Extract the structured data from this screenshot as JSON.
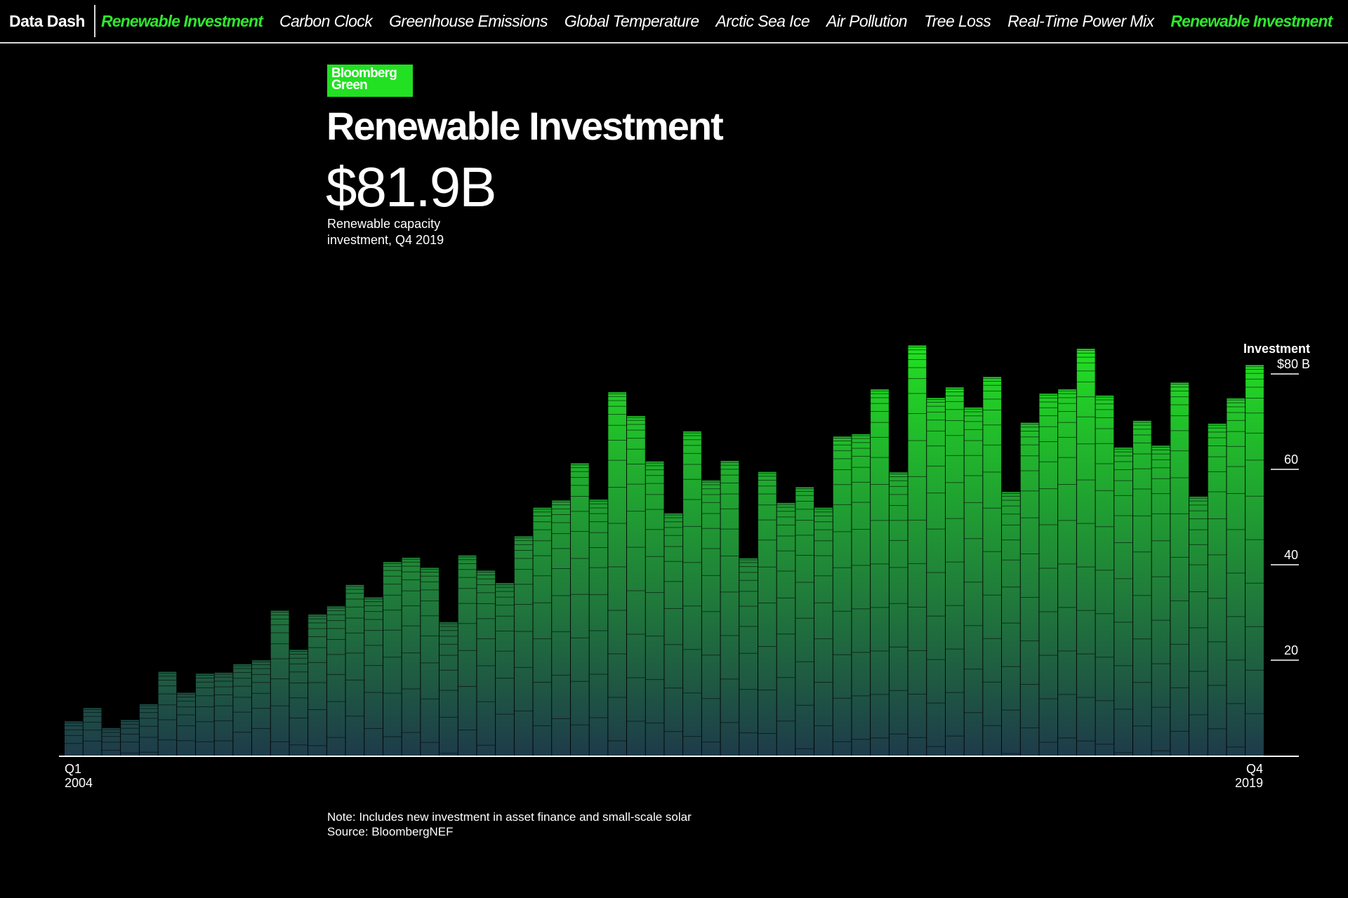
{
  "nav": {
    "brand": "Data Dash",
    "items": [
      {
        "label": "Renewable Investment",
        "active": true
      },
      {
        "label": "Carbon Clock",
        "active": false
      },
      {
        "label": "Greenhouse Emissions",
        "active": false
      },
      {
        "label": "Global Temperature",
        "active": false
      },
      {
        "label": "Arctic Sea Ice",
        "active": false
      },
      {
        "label": "Air Pollution",
        "active": false
      },
      {
        "label": "Tree Loss",
        "active": false
      },
      {
        "label": "Real-Time Power Mix",
        "active": false
      },
      {
        "label": "Renewable Investment",
        "active": true
      }
    ]
  },
  "logo": {
    "line1": "Bloomberg",
    "line2": "Green"
  },
  "header": {
    "title": "Renewable Investment",
    "value": "$81.9B",
    "caption": "Renewable capacity investment, Q4 2019"
  },
  "colors": {
    "accent": "#22e022",
    "bar_top": "#22e022",
    "bar_bottom": "#1e3b4a"
  },
  "chart_data": {
    "type": "bar",
    "ylabel": "Investment",
    "yunit": "B",
    "ylim": [
      0,
      86
    ],
    "yticks": [
      20,
      40,
      60,
      80
    ],
    "ytick_labels": [
      "20",
      "40",
      "60",
      "$80"
    ],
    "grid": false,
    "x_start_label": [
      "Q1",
      "2004"
    ],
    "x_end_label": [
      "Q4",
      "2019"
    ],
    "categories": [
      "Q1 2004",
      "Q2 2004",
      "Q3 2004",
      "Q4 2004",
      "Q1 2005",
      "Q2 2005",
      "Q3 2005",
      "Q4 2005",
      "Q1 2006",
      "Q2 2006",
      "Q3 2006",
      "Q4 2006",
      "Q1 2007",
      "Q2 2007",
      "Q3 2007",
      "Q4 2007",
      "Q1 2008",
      "Q2 2008",
      "Q3 2008",
      "Q4 2008",
      "Q1 2009",
      "Q2 2009",
      "Q3 2009",
      "Q4 2009",
      "Q1 2010",
      "Q2 2010",
      "Q3 2010",
      "Q4 2010",
      "Q1 2011",
      "Q2 2011",
      "Q3 2011",
      "Q4 2011",
      "Q1 2012",
      "Q2 2012",
      "Q3 2012",
      "Q4 2012",
      "Q1 2013",
      "Q2 2013",
      "Q3 2013",
      "Q4 2013",
      "Q1 2014",
      "Q2 2014",
      "Q3 2014",
      "Q4 2014",
      "Q1 2015",
      "Q2 2015",
      "Q3 2015",
      "Q4 2015",
      "Q1 2016",
      "Q2 2016",
      "Q3 2016",
      "Q4 2016",
      "Q1 2017",
      "Q2 2017",
      "Q3 2017",
      "Q4 2017",
      "Q1 2018",
      "Q2 2018",
      "Q3 2018",
      "Q4 2018",
      "Q1 2019",
      "Q2 2019",
      "Q3 2019",
      "Q4 2019"
    ],
    "values": [
      7.2,
      10.0,
      5.8,
      7.5,
      10.8,
      17.6,
      13.2,
      17.2,
      17.4,
      19.2,
      20.0,
      30.4,
      22.2,
      29.6,
      31.3,
      35.8,
      33.2,
      40.6,
      41.5,
      39.4,
      28.0,
      42.0,
      38.8,
      36.2,
      46.0,
      52.0,
      53.5,
      61.3,
      53.7,
      76.2,
      71.2,
      61.7,
      50.8,
      68.0,
      57.7,
      61.8,
      41.4,
      59.5,
      53.0,
      56.3,
      52.0,
      66.9,
      67.4,
      76.8,
      59.4,
      86.0,
      75.0,
      77.2,
      73.0,
      79.4,
      55.3,
      69.8,
      75.9,
      76.8,
      85.3,
      75.5,
      64.6,
      70.2,
      65.0,
      78.2,
      54.3,
      69.6,
      74.9,
      81.9
    ]
  },
  "footer": {
    "note": "Note: Includes new investment in asset finance and small-scale solar",
    "source": "Source: BloombergNEF"
  }
}
